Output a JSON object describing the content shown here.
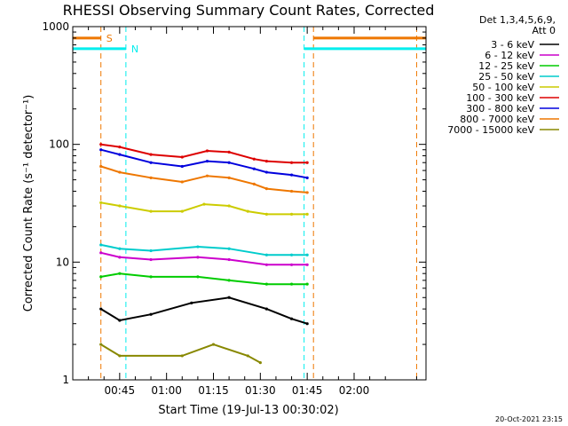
{
  "chart_data": {
    "type": "line",
    "title": "RHESSI Observing Summary Count Rates, Corrected",
    "xlabel": "Start Time (19-Jul-13 00:30:02)",
    "ylabel": "Corrected Count Rate (s⁻¹ detector⁻¹)",
    "yscale": "log",
    "ylim": [
      1,
      1000
    ],
    "xlim_minutes": [
      30,
      143
    ],
    "x_ticks": [
      {
        "m": 45,
        "label": "00:45"
      },
      {
        "m": 60,
        "label": "01:00"
      },
      {
        "m": 75,
        "label": "01:15"
      },
      {
        "m": 90,
        "label": "01:30"
      },
      {
        "m": 105,
        "label": "01:45"
      },
      {
        "m": 120,
        "label": "02:00"
      }
    ],
    "y_ticks": [
      {
        "v": 1,
        "label": "1"
      },
      {
        "v": 10,
        "label": "10"
      },
      {
        "v": 100,
        "label": "100"
      },
      {
        "v": 1000,
        "label": "1000"
      }
    ],
    "legend_header": [
      "Det 1,3,4,5,6,9,",
      "Att 0"
    ],
    "legend_position": "right",
    "series": [
      {
        "name": "3 - 6 keV",
        "color": "#000000",
        "points": [
          [
            39,
            4
          ],
          [
            45,
            3.2
          ],
          [
            55,
            3.6
          ],
          [
            68,
            4.5
          ],
          [
            80,
            5
          ],
          [
            92,
            4
          ],
          [
            100,
            3.3
          ],
          [
            105,
            3
          ]
        ]
      },
      {
        "name": "6 - 12 keV",
        "color": "#cc00cc",
        "points": [
          [
            39,
            12
          ],
          [
            45,
            11
          ],
          [
            55,
            10.5
          ],
          [
            70,
            11
          ],
          [
            80,
            10.5
          ],
          [
            92,
            9.5
          ],
          [
            100,
            9.5
          ],
          [
            105,
            9.5
          ]
        ]
      },
      {
        "name": "12 - 25 keV",
        "color": "#00cc00",
        "points": [
          [
            39,
            7.5
          ],
          [
            45,
            8
          ],
          [
            55,
            7.5
          ],
          [
            70,
            7.5
          ],
          [
            80,
            7
          ],
          [
            92,
            6.5
          ],
          [
            100,
            6.5
          ],
          [
            105,
            6.5
          ]
        ]
      },
      {
        "name": "25 - 50 keV",
        "color": "#00cccc",
        "points": [
          [
            39,
            14
          ],
          [
            45,
            13
          ],
          [
            55,
            12.5
          ],
          [
            70,
            13.5
          ],
          [
            80,
            13
          ],
          [
            92,
            11.5
          ],
          [
            100,
            11.5
          ],
          [
            105,
            11.5
          ]
        ]
      },
      {
        "name": "50 - 100 keV",
        "color": "#cccc00",
        "points": [
          [
            39,
            32
          ],
          [
            45,
            30
          ],
          [
            55,
            27
          ],
          [
            65,
            27
          ],
          [
            72,
            31
          ],
          [
            80,
            30
          ],
          [
            86,
            27
          ],
          [
            92,
            25.5
          ],
          [
            100,
            25.5
          ],
          [
            105,
            25.5
          ]
        ]
      },
      {
        "name": "100 - 300 keV",
        "color": "#dd0000",
        "points": [
          [
            39,
            100
          ],
          [
            45,
            95
          ],
          [
            55,
            82
          ],
          [
            65,
            78
          ],
          [
            73,
            88
          ],
          [
            80,
            86
          ],
          [
            88,
            75
          ],
          [
            92,
            72
          ],
          [
            100,
            70
          ],
          [
            105,
            70
          ]
        ]
      },
      {
        "name": "300 - 800 keV",
        "color": "#0000dd",
        "points": [
          [
            39,
            90
          ],
          [
            45,
            82
          ],
          [
            55,
            70
          ],
          [
            65,
            65
          ],
          [
            73,
            72
          ],
          [
            80,
            70
          ],
          [
            88,
            62
          ],
          [
            92,
            58
          ],
          [
            100,
            55
          ],
          [
            105,
            52
          ]
        ]
      },
      {
        "name": "800 - 7000 keV",
        "color": "#ee7700",
        "points": [
          [
            39,
            65
          ],
          [
            45,
            58
          ],
          [
            55,
            52
          ],
          [
            65,
            48
          ],
          [
            73,
            54
          ],
          [
            80,
            52
          ],
          [
            88,
            46
          ],
          [
            92,
            42
          ],
          [
            100,
            40
          ],
          [
            105,
            39
          ]
        ]
      },
      {
        "name": "7000 - 15000 keV",
        "color": "#888800",
        "points": [
          [
            39,
            2
          ],
          [
            45,
            1.6
          ],
          [
            65,
            1.6
          ],
          [
            75,
            2
          ],
          [
            86,
            1.6
          ],
          [
            90,
            1.4
          ]
        ]
      }
    ],
    "markers": [
      {
        "label": "S",
        "color": "#ee7700",
        "segments": [
          [
            30,
            39
          ],
          [
            107,
            143
          ]
        ],
        "value": 800
      },
      {
        "label": "N",
        "color": "#00eeee",
        "segments": [
          [
            30,
            47
          ],
          [
            104,
            143
          ]
        ],
        "value": 650
      }
    ],
    "vlines": [
      {
        "m": 39,
        "color": "#ee7700"
      },
      {
        "m": 47,
        "color": "#00eeee"
      },
      {
        "m": 104,
        "color": "#00eeee"
      },
      {
        "m": 107,
        "color": "#ee7700"
      },
      {
        "m": 140,
        "color": "#ee7700"
      }
    ]
  },
  "footer_timestamp": "20-Oct-2021 23:15"
}
